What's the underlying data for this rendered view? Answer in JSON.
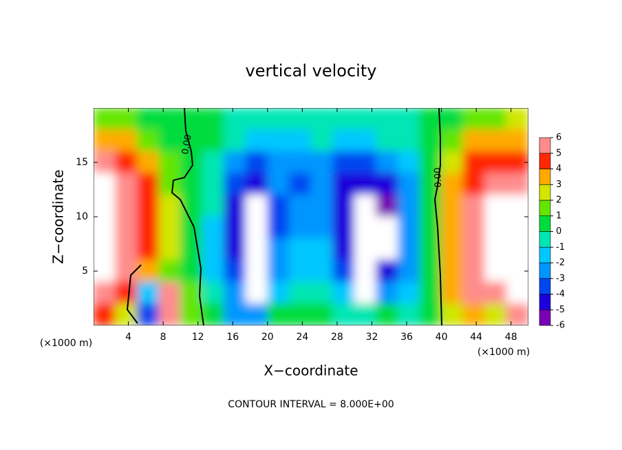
{
  "chart_data": {
    "type": "heatmap",
    "title": "vertical velocity",
    "x_label": "X−coordinate",
    "y_label": "Z−coordinate",
    "x_unit_label": "(×1000 m)",
    "note": "CONTOUR INTERVAL = 8.000E+00",
    "contour_labels": [
      "0.00",
      "0.00"
    ],
    "xlim": [
      0,
      50
    ],
    "ylim": [
      0,
      20
    ],
    "xticks": [
      4,
      8,
      12,
      16,
      20,
      24,
      28,
      32,
      36,
      40,
      44,
      48
    ],
    "yticks": [
      5,
      10,
      15
    ],
    "x": [
      1.25,
      3.75,
      6.25,
      8.75,
      11.25,
      13.75,
      16.25,
      18.75,
      21.25,
      23.75,
      26.25,
      28.75,
      31.25,
      33.75,
      36.25,
      38.75,
      41.25,
      43.75,
      46.25,
      48.75
    ],
    "y": [
      19,
      17,
      15,
      13,
      11,
      9,
      7,
      5,
      3,
      1
    ],
    "values": [
      [
        1,
        1,
        0.5,
        0.5,
        0.5,
        0,
        -0.5,
        -1,
        -1,
        -1,
        -0.5,
        -0.5,
        -0.5,
        -0.5,
        -0.5,
        0,
        0.5,
        1,
        1.5,
        2
      ],
      [
        3.5,
        3,
        1.5,
        0.5,
        0.5,
        0,
        -1,
        -1.5,
        -1.5,
        -1.5,
        -1,
        -1.5,
        -1.5,
        -1,
        -1,
        0,
        1.5,
        3,
        3.5,
        3.5
      ],
      [
        5,
        4.5,
        3,
        1,
        0.5,
        -0.5,
        -3,
        -3.5,
        -2.5,
        -3,
        -2.5,
        -3.5,
        -4,
        -3,
        -2,
        0,
        2.5,
        4,
        4.5,
        4.5
      ],
      [
        8,
        5,
        4,
        1.5,
        0.5,
        -1,
        -4,
        -4.5,
        -3,
        -4,
        -3,
        -4.5,
        -5,
        -4.5,
        -2.5,
        0,
        3,
        4.5,
        5.5,
        5
      ],
      [
        8,
        6,
        4.5,
        2,
        0.5,
        -1,
        -4.5,
        8,
        -3.5,
        -3,
        -3,
        -4.5,
        8,
        -5.5,
        -3,
        0,
        3.5,
        5,
        8,
        8
      ],
      [
        8,
        6,
        4.5,
        2,
        0.5,
        -1.5,
        -4.5,
        8,
        -3.5,
        -2.5,
        -3,
        -5,
        8,
        8,
        -3,
        0,
        3.5,
        5,
        8,
        8
      ],
      [
        8,
        6,
        4,
        2,
        0.5,
        -1.5,
        -4.5,
        8,
        -3,
        -2,
        -2,
        -5,
        8,
        8,
        -3,
        0,
        3,
        5,
        8,
        8
      ],
      [
        8,
        5.5,
        3.5,
        1,
        0.5,
        -2,
        -4,
        8,
        -2.5,
        -1.5,
        -1.5,
        -4,
        8,
        -5,
        -3,
        0,
        3,
        5,
        8,
        8
      ],
      [
        6,
        4,
        -2,
        5,
        1,
        -1,
        -3,
        8,
        -2,
        -1,
        -1,
        -2,
        8,
        -3,
        -2,
        0,
        3,
        6,
        5,
        8
      ],
      [
        4,
        2,
        -4,
        5,
        1,
        0,
        -3,
        -3,
        0,
        0,
        0,
        -1,
        -1,
        0,
        -1,
        0,
        2,
        3,
        2,
        5
      ]
    ],
    "colorbar": {
      "ticks": [
        -6,
        -5,
        -4,
        -3,
        -2,
        -1,
        0,
        1,
        2,
        3,
        4,
        5,
        6
      ],
      "colors": [
        "#7800b4",
        "#1e00dc",
        "#0046f0",
        "#0096ff",
        "#00c8ff",
        "#00e6b4",
        "#00dc3c",
        "#64e600",
        "#d2e600",
        "#ffaa00",
        "#ff2800",
        "#ff8c8c"
      ],
      "over_color": "#ffffff"
    }
  }
}
